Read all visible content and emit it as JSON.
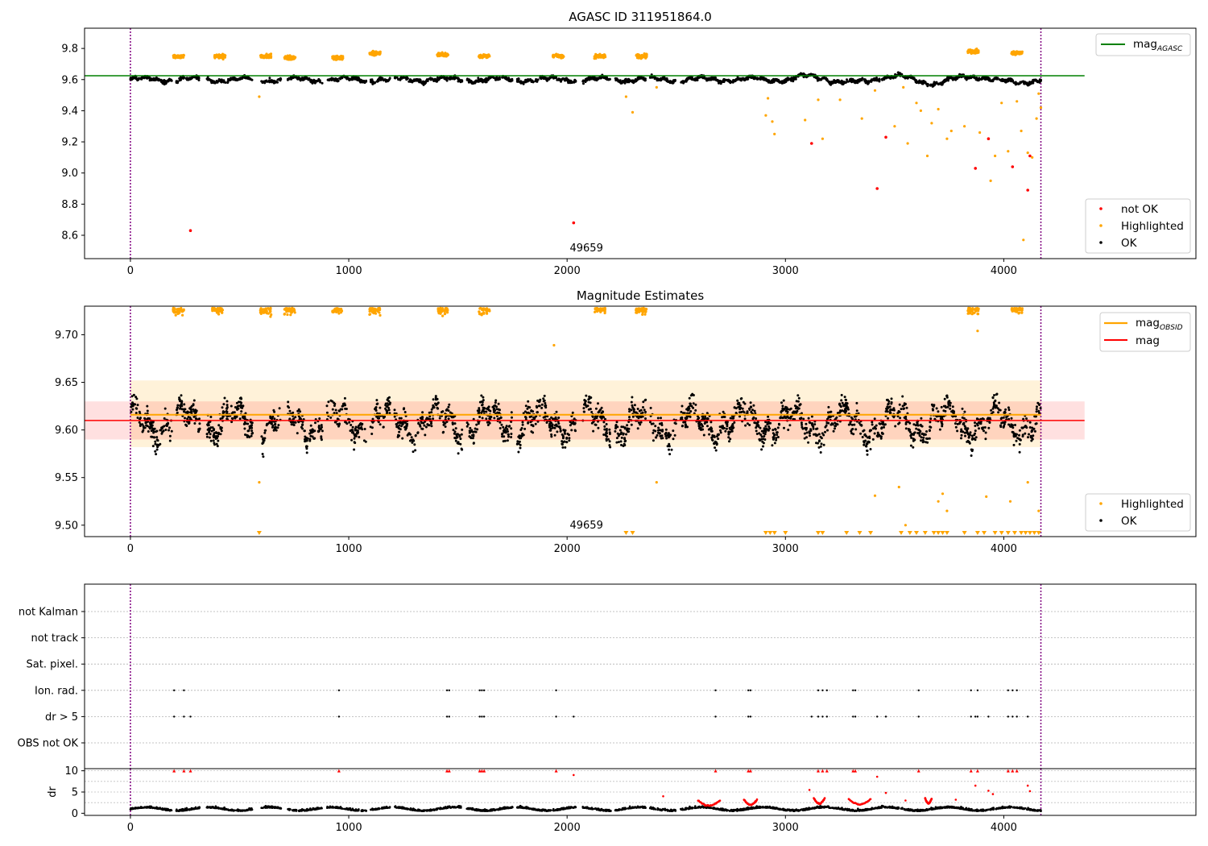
{
  "figure": {
    "title": "AGASC ID 311951864.0"
  },
  "chart_data": [
    {
      "panel": "top",
      "type": "scatter",
      "title": "AGASC ID 311951864.0",
      "xlim": [
        -210,
        4880
      ],
      "ylim": [
        8.45,
        9.93
      ],
      "xticks": [
        "0",
        "1000",
        "2000",
        "3000",
        "4000"
      ],
      "yticks": [
        "8.6",
        "8.8",
        "9.0",
        "9.2",
        "9.4",
        "9.6",
        "9.8"
      ],
      "vlines": [
        0,
        4170
      ],
      "hlines": [
        {
          "name": "mag_AGASC",
          "y": 9.625,
          "x_end": 4370,
          "color": "#008000"
        }
      ],
      "annotation": "49659",
      "annotation_x": 2000,
      "base_level": 9.6,
      "legend_lines": [
        {
          "label": "mag",
          "sub": "AGASC",
          "color": "#008000"
        }
      ],
      "legend_markers": [
        {
          "label": "not OK",
          "color": "#ff0000"
        },
        {
          "label": "Highlighted",
          "color": "#ffa500"
        },
        {
          "label": "OK",
          "color": "#000000"
        }
      ],
      "highlight_clusters": [
        {
          "x": 220,
          "y": 9.75
        },
        {
          "x": 410,
          "y": 9.75
        },
        {
          "x": 620,
          "y": 9.75
        },
        {
          "x": 730,
          "y": 9.74
        },
        {
          "x": 950,
          "y": 9.74
        },
        {
          "x": 1120,
          "y": 9.77
        },
        {
          "x": 1430,
          "y": 9.76
        },
        {
          "x": 1620,
          "y": 9.75
        },
        {
          "x": 1960,
          "y": 9.75
        },
        {
          "x": 2150,
          "y": 9.75
        },
        {
          "x": 2340,
          "y": 9.75
        },
        {
          "x": 3860,
          "y": 9.78
        },
        {
          "x": 4060,
          "y": 9.77
        }
      ],
      "outliers_not_ok": [
        {
          "x": 275,
          "y": 8.63
        },
        {
          "x": 2030,
          "y": 8.68
        },
        {
          "x": 3120,
          "y": 9.19
        },
        {
          "x": 3420,
          "y": 8.9
        },
        {
          "x": 3460,
          "y": 9.23
        },
        {
          "x": 3870,
          "y": 9.03
        },
        {
          "x": 3930,
          "y": 9.22
        },
        {
          "x": 4040,
          "y": 9.04
        },
        {
          "x": 4110,
          "y": 8.89
        },
        {
          "x": 4120,
          "y": 9.11
        }
      ],
      "outliers_highlight": [
        {
          "x": 590,
          "y": 9.49
        },
        {
          "x": 2270,
          "y": 9.49
        },
        {
          "x": 2300,
          "y": 9.39
        },
        {
          "x": 2410,
          "y": 9.55
        },
        {
          "x": 2910,
          "y": 9.37
        },
        {
          "x": 2920,
          "y": 9.48
        },
        {
          "x": 2940,
          "y": 9.33
        },
        {
          "x": 2950,
          "y": 9.25
        },
        {
          "x": 3090,
          "y": 9.34
        },
        {
          "x": 3150,
          "y": 9.47
        },
        {
          "x": 3170,
          "y": 9.22
        },
        {
          "x": 3250,
          "y": 9.47
        },
        {
          "x": 3350,
          "y": 9.35
        },
        {
          "x": 3410,
          "y": 9.53
        },
        {
          "x": 3500,
          "y": 9.3
        },
        {
          "x": 3540,
          "y": 9.55
        },
        {
          "x": 3560,
          "y": 9.19
        },
        {
          "x": 3600,
          "y": 9.45
        },
        {
          "x": 3620,
          "y": 9.4
        },
        {
          "x": 3650,
          "y": 9.11
        },
        {
          "x": 3670,
          "y": 9.32
        },
        {
          "x": 3700,
          "y": 9.41
        },
        {
          "x": 3740,
          "y": 9.22
        },
        {
          "x": 3760,
          "y": 9.27
        },
        {
          "x": 3820,
          "y": 9.3
        },
        {
          "x": 3890,
          "y": 9.26
        },
        {
          "x": 3940,
          "y": 8.95
        },
        {
          "x": 3960,
          "y": 9.11
        },
        {
          "x": 3990,
          "y": 9.45
        },
        {
          "x": 4020,
          "y": 9.14
        },
        {
          "x": 4060,
          "y": 9.46
        },
        {
          "x": 4080,
          "y": 9.27
        },
        {
          "x": 4090,
          "y": 8.57
        },
        {
          "x": 4110,
          "y": 9.13
        },
        {
          "x": 4130,
          "y": 9.1
        },
        {
          "x": 4150,
          "y": 9.35
        },
        {
          "x": 4160,
          "y": 9.51
        },
        {
          "x": 4170,
          "y": 9.42
        }
      ]
    },
    {
      "panel": "middle",
      "type": "scatter",
      "title": "Magnitude Estimates",
      "xlim": [
        -210,
        4880
      ],
      "ylim": [
        9.488,
        9.73
      ],
      "xticks": [
        "0",
        "1000",
        "2000",
        "3000",
        "4000"
      ],
      "yticks": [
        "9.50",
        "9.55",
        "9.60",
        "9.65",
        "9.70"
      ],
      "vlines": [
        0,
        4170
      ],
      "annotation": "49659",
      "annotation_x": 2000,
      "mag_obsid": 9.616,
      "mag_obsid_band": [
        9.582,
        9.652
      ],
      "mag": 9.61,
      "mag_band": [
        9.59,
        9.63
      ],
      "legend_lines": [
        {
          "label": "mag",
          "sub": "OBSID",
          "color": "#ffa500"
        },
        {
          "label": "mag",
          "sub": "",
          "color": "#ff0000"
        }
      ],
      "legend_markers": [
        {
          "label": "Highlighted",
          "color": "#ffa500"
        },
        {
          "label": "OK",
          "color": "#000000"
        }
      ],
      "top_clusters_x": [
        220,
        400,
        620,
        730,
        950,
        1120,
        1430,
        1620,
        2150,
        2340,
        3860,
        4060
      ],
      "bottom_triangles_x": [
        590,
        2270,
        2300,
        2910,
        2930,
        2950,
        3000,
        3150,
        3170,
        3280,
        3340,
        3390,
        3530,
        3570,
        3600,
        3640,
        3680,
        3700,
        3720,
        3740,
        3820,
        3880,
        3910,
        3960,
        3990,
        4020,
        4050,
        4080,
        4100,
        4120,
        4140,
        4160
      ],
      "scattered_highlight": [
        {
          "x": 1940,
          "y": 9.689
        },
        {
          "x": 3880,
          "y": 9.704
        },
        {
          "x": 590,
          "y": 9.545
        },
        {
          "x": 2410,
          "y": 9.545
        },
        {
          "x": 3410,
          "y": 9.531
        },
        {
          "x": 3520,
          "y": 9.54
        },
        {
          "x": 3700,
          "y": 9.525
        },
        {
          "x": 3720,
          "y": 9.533
        },
        {
          "x": 3740,
          "y": 9.515
        },
        {
          "x": 3920,
          "y": 9.53
        },
        {
          "x": 4030,
          "y": 9.525
        },
        {
          "x": 4110,
          "y": 9.545
        },
        {
          "x": 4160,
          "y": 9.515
        },
        {
          "x": 3550,
          "y": 9.5
        }
      ]
    },
    {
      "panel": "flags",
      "type": "scatter",
      "xlim": [
        -210,
        4880
      ],
      "vlines": [
        0,
        4170
      ],
      "categories": [
        "not Kalman",
        "not track",
        "Sat. pixel.",
        "Ion. rad.",
        "dr > 5",
        "OBS not OK"
      ],
      "ion_rad_x": [
        200,
        245,
        955,
        1450,
        1460,
        1600,
        1610,
        1620,
        1950,
        2680,
        2830,
        2840,
        3150,
        3170,
        3190,
        3310,
        3320,
        3610,
        3850,
        3880,
        4020,
        4040,
        4060
      ],
      "dr_gt5_x": [
        200,
        245,
        275,
        955,
        1450,
        1460,
        1600,
        1610,
        1620,
        1950,
        2030,
        2680,
        2830,
        2840,
        3120,
        3150,
        3170,
        3190,
        3310,
        3320,
        3420,
        3460,
        3610,
        3850,
        3870,
        3880,
        3930,
        4020,
        4040,
        4060,
        4110
      ]
    },
    {
      "panel": "dr",
      "type": "scatter",
      "ylabel": "dr",
      "xlim": [
        -210,
        4880
      ],
      "ylim": [
        -0.5,
        10.5
      ],
      "xticks": [
        "0",
        "1000",
        "2000",
        "3000",
        "4000"
      ],
      "yticks": [
        "0",
        "5",
        "10"
      ],
      "vlines": [
        0,
        4170
      ],
      "dr_gt10_x": [
        200,
        245,
        275,
        955,
        1450,
        1460,
        1600,
        1610,
        1620,
        1950,
        2680,
        2830,
        2840,
        3150,
        3170,
        3190,
        3310,
        3320,
        3610,
        3850,
        3880,
        4020,
        4040,
        4060
      ],
      "red_points": [
        {
          "x": 2030,
          "y": 9.0
        },
        {
          "x": 2440,
          "y": 4.0
        },
        {
          "x": 3110,
          "y": 5.5
        },
        {
          "x": 3420,
          "y": 8.6
        },
        {
          "x": 3460,
          "y": 4.8
        },
        {
          "x": 3870,
          "y": 6.5
        },
        {
          "x": 3930,
          "y": 5.3
        },
        {
          "x": 3950,
          "y": 4.5
        },
        {
          "x": 4110,
          "y": 6.5
        },
        {
          "x": 4120,
          "y": 5.2
        },
        {
          "x": 3550,
          "y": 3.0
        },
        {
          "x": 3640,
          "y": 3.6
        },
        {
          "x": 3780,
          "y": 3.2
        }
      ],
      "red_arcs": [
        {
          "x0": 2600,
          "x1": 2700,
          "peak": 3.0
        },
        {
          "x0": 2810,
          "x1": 2870,
          "peak": 3.2
        },
        {
          "x0": 3130,
          "x1": 3180,
          "peak": 3.5
        },
        {
          "x0": 3290,
          "x1": 3390,
          "peak": 3.3
        },
        {
          "x0": 3640,
          "x1": 3670,
          "peak": 3.5
        }
      ]
    }
  ]
}
